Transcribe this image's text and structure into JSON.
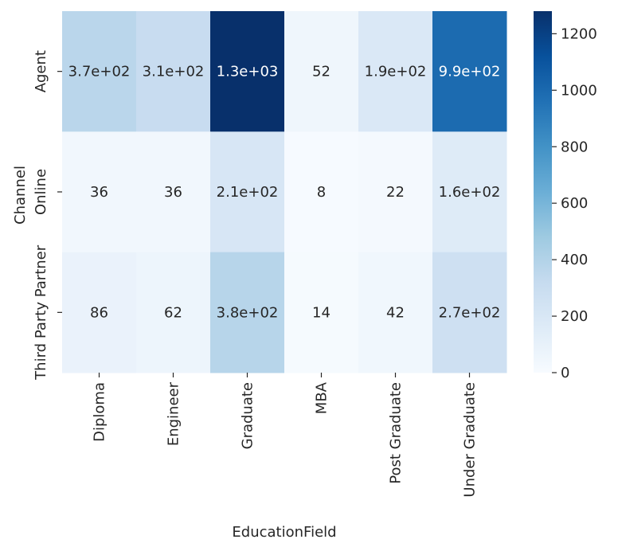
{
  "chart_data": {
    "type": "heatmap",
    "title": "",
    "xlabel": "EducationField",
    "ylabel": "Channel",
    "x_categories": [
      "Diploma",
      "Engineer",
      "Graduate",
      "MBA",
      "Post Graduate",
      "Under Graduate"
    ],
    "y_categories": [
      "Agent",
      "Online",
      "Third Party Partner"
    ],
    "values": [
      [
        370,
        310,
        1280,
        52,
        190,
        990
      ],
      [
        36,
        36,
        210,
        8,
        22,
        160
      ],
      [
        86,
        62,
        380,
        14,
        42,
        270
      ]
    ],
    "annotations": [
      [
        "3.7e+02",
        "3.1e+02",
        "1.3e+03",
        "52",
        "1.9e+02",
        "9.9e+02"
      ],
      [
        "36",
        "36",
        "2.1e+02",
        "8",
        "22",
        "1.6e+02"
      ],
      [
        "86",
        "62",
        "3.8e+02",
        "14",
        "42",
        "2.7e+02"
      ]
    ],
    "colormap": "Blues",
    "color_range": [
      0,
      1280
    ],
    "colorbar_ticks": [
      0,
      200,
      400,
      600,
      800,
      1000,
      1200
    ],
    "colorbar_tick_labels": [
      "0",
      "200",
      "400",
      "600",
      "800",
      "1000",
      "1200"
    ]
  }
}
